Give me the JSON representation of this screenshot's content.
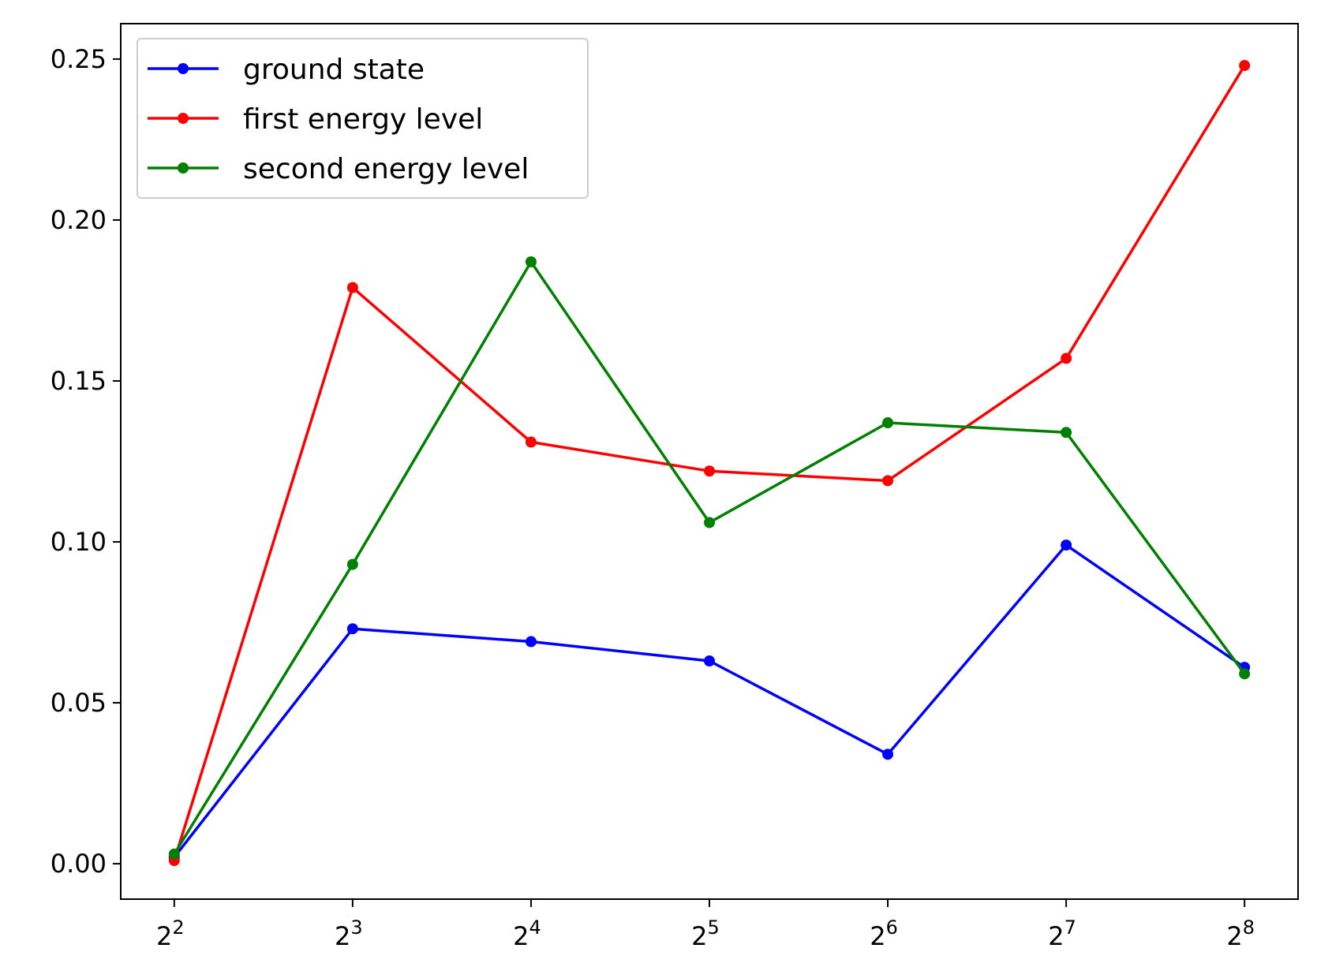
{
  "chart_data": {
    "type": "line",
    "title": "",
    "xlabel": "",
    "ylabel": "",
    "x": [
      2,
      3,
      4,
      5,
      6,
      7,
      8
    ],
    "x_tick_base": "2",
    "x_tick_exponents": [
      "2",
      "3",
      "4",
      "5",
      "6",
      "7",
      "8"
    ],
    "xlim": [
      1.7,
      8.3
    ],
    "x_scale": "log2",
    "ylim": [
      -0.011,
      0.261
    ],
    "y_ticks": [
      0.0,
      0.05,
      0.1,
      0.15,
      0.2,
      0.25
    ],
    "y_tick_labels": [
      "0.00",
      "0.05",
      "0.10",
      "0.15",
      "0.20",
      "0.25"
    ],
    "grid": false,
    "legend_position": "top-left",
    "series": [
      {
        "name": "ground state",
        "color": "#0000ff",
        "values": [
          0.002,
          0.073,
          0.069,
          0.063,
          0.034,
          0.099,
          0.061
        ]
      },
      {
        "name": "first energy level",
        "color": "#ff0000",
        "values": [
          0.001,
          0.179,
          0.131,
          0.122,
          0.119,
          0.157,
          0.248
        ]
      },
      {
        "name": "second energy level",
        "color": "#008000",
        "values": [
          0.003,
          0.093,
          0.187,
          0.106,
          0.137,
          0.134,
          0.059
        ]
      }
    ]
  }
}
